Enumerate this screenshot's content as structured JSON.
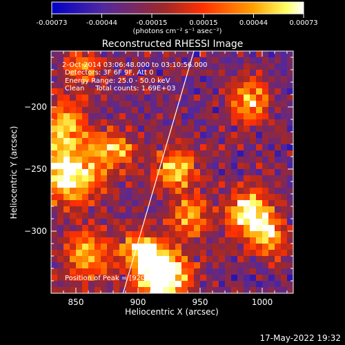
{
  "chart_data": {
    "type": "heatmap",
    "title": "Reconstructed RHESSI Image",
    "xlabel": "Heliocentric X (arcsec)",
    "ylabel": "Heliocentric Y (arcsec)",
    "xlim": [
      830,
      1025
    ],
    "ylim": [
      -350,
      -155
    ],
    "x_ticks": [
      850,
      900,
      950,
      1000
    ],
    "y_ticks": [
      -300,
      -250,
      -200
    ],
    "colorbar": {
      "ticks": [
        "-0.00073",
        "-0.00044",
        "-0.00015",
        "0.00015",
        "0.00044",
        "0.00073"
      ],
      "range": [
        -0.00073,
        0.00073
      ],
      "units": "(photons cm⁻² s⁻¹ asec⁻²)",
      "colors": [
        "#0000c8",
        "#7030a0",
        "#b03000",
        "#ff3000",
        "#ff9000",
        "#ffff60",
        "#ffffff"
      ]
    },
    "limb_line": [
      [
        888,
        -350
      ],
      [
        945,
        -155
      ]
    ],
    "annotations": [
      "2-Oct-2014 03:06:48.000 to 03:10:56.000",
      "Detectors: 3F 6F 9F, Att 0",
      "Energy Range: 25.0 - 50.0 keV",
      "Clean     Total counts: 1.69E+03"
    ],
    "peak_label": "Position of Peak = [920, -335]",
    "peak": [
      920,
      -335
    ],
    "hot_spots": [
      {
        "x": 920,
        "y": -335,
        "amp": 1.0,
        "sigma": 14
      },
      {
        "x": 902,
        "y": -315,
        "amp": 0.6,
        "sigma": 10
      },
      {
        "x": 845,
        "y": -255,
        "amp": 0.75,
        "sigma": 16
      },
      {
        "x": 838,
        "y": -215,
        "amp": 0.55,
        "sigma": 14
      },
      {
        "x": 880,
        "y": -235,
        "amp": 0.5,
        "sigma": 12
      },
      {
        "x": 930,
        "y": -250,
        "amp": 0.55,
        "sigma": 12
      },
      {
        "x": 940,
        "y": -290,
        "amp": 0.45,
        "sigma": 12
      },
      {
        "x": 990,
        "y": -285,
        "amp": 0.7,
        "sigma": 13
      },
      {
        "x": 1005,
        "y": -305,
        "amp": 0.55,
        "sigma": 10
      },
      {
        "x": 990,
        "y": -195,
        "amp": 0.55,
        "sigma": 11
      },
      {
        "x": 860,
        "y": -320,
        "amp": 0.55,
        "sigma": 14
      },
      {
        "x": 855,
        "y": -170,
        "amp": 0.4,
        "sigma": 10
      }
    ]
  },
  "footer": {
    "timestamp": "17-May-2022 19:32"
  }
}
